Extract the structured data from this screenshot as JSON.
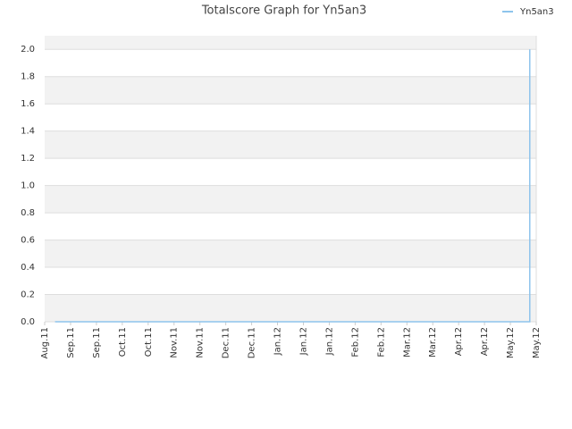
{
  "chart_data": {
    "type": "line",
    "title": "Totalscore Graph for Yn5an3",
    "xlim": [
      0,
      19
    ],
    "xticks": [
      {
        "value": 0,
        "label": "Aug.11"
      },
      {
        "value": 1,
        "label": "Sep.11"
      },
      {
        "value": 2,
        "label": "Sep.11"
      },
      {
        "value": 3,
        "label": "Oct.11"
      },
      {
        "value": 4,
        "label": "Oct.11"
      },
      {
        "value": 5,
        "label": "Nov.11"
      },
      {
        "value": 6,
        "label": "Nov.11"
      },
      {
        "value": 7,
        "label": "Dec.11"
      },
      {
        "value": 8,
        "label": "Dec.11"
      },
      {
        "value": 9,
        "label": "Jan.12"
      },
      {
        "value": 10,
        "label": "Jan.12"
      },
      {
        "value": 11,
        "label": "Jan.12"
      },
      {
        "value": 12,
        "label": "Feb.12"
      },
      {
        "value": 13,
        "label": "Feb.12"
      },
      {
        "value": 14,
        "label": "Mar.12"
      },
      {
        "value": 15,
        "label": "Mar.12"
      },
      {
        "value": 16,
        "label": "Apr.12"
      },
      {
        "value": 17,
        "label": "Apr.12"
      },
      {
        "value": 18,
        "label": "May.12"
      },
      {
        "value": 19,
        "label": "May.12"
      }
    ],
    "ylim": [
      0,
      2.1
    ],
    "yticks": [
      {
        "value": 0,
        "label": "0.0"
      },
      0.2,
      0.4,
      0.6,
      0.8,
      {
        "value": 1,
        "label": "1.0"
      },
      1.2,
      1.4,
      1.6,
      1.8,
      {
        "value": 2,
        "label": "2.0"
      }
    ],
    "grid": true,
    "legend": "top-right",
    "series": [
      {
        "name": "Yn5an3",
        "color": "#8ec4ec",
        "x": [
          0.4,
          18.75,
          18.75
        ],
        "values": [
          0,
          0,
          2
        ]
      }
    ]
  }
}
